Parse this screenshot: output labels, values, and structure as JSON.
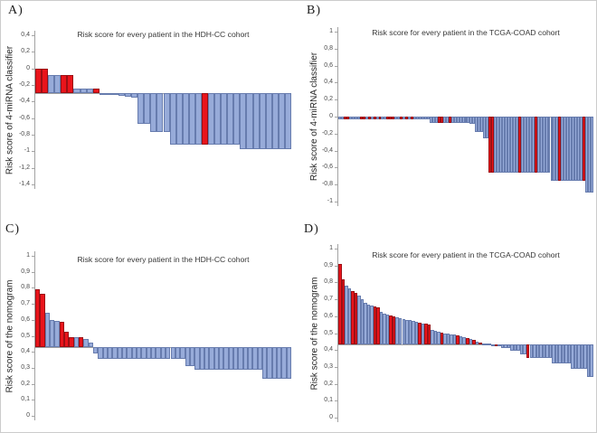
{
  "colors": {
    "background": "#ffffff",
    "bar_blue_fill": "#97abd9",
    "bar_blue_border": "#677cae",
    "bar_red_fill": "#e9141b",
    "bar_red_border": "#9b0f14",
    "axis_gray": "#a3a3a3",
    "title_text": "#373737",
    "tick_text": "#4a4a4a"
  },
  "chart_data": [
    {
      "type": "bar",
      "panel_label": "A)",
      "title": "Risk score for every patient in the HDH-CC cohort",
      "ylabel": "Risk score of 4-miRNA classifier",
      "ymax": 0.4,
      "ymin": -1.4,
      "baseline": -0.3,
      "grid": false,
      "legend": "none",
      "tick_labels": [
        "0,4",
        "0,2",
        "0",
        "-0,2",
        "-0,4",
        "-0,6",
        "-0,8",
        "-1",
        "-1,2",
        "-1,4"
      ],
      "tick_values": [
        0.4,
        0.2,
        0,
        -0.2,
        -0.4,
        -0.6,
        -0.8,
        -1,
        -1.2,
        -1.4
      ],
      "values": [
        -0.005,
        -0.005,
        -0.08,
        -0.08,
        -0.08,
        -0.08,
        -0.24,
        -0.24,
        -0.24,
        -0.24,
        -0.31,
        -0.315,
        -0.32,
        -0.33,
        -0.34,
        -0.35,
        -0.67,
        -0.67,
        -0.77,
        -0.77,
        -0.77,
        -0.92,
        -0.92,
        -0.92,
        -0.92,
        -0.92,
        -0.92,
        -0.92,
        -0.92,
        -0.92,
        -0.92,
        -0.92,
        -0.97,
        -0.97,
        -0.97,
        -0.97,
        -0.97,
        -0.97,
        -0.97,
        -0.97
      ],
      "red_indices": [
        0,
        1,
        4,
        5,
        9,
        26
      ]
    },
    {
      "type": "bar",
      "panel_label": "B)",
      "title": "Risk score for every patient in the TCGA-COAD cohort",
      "ylabel": "Risk score of 4-miRNA classifier",
      "ymax": 1,
      "ymin": -1,
      "baseline": 0,
      "grid": false,
      "legend": "none",
      "tick_labels": [
        "1",
        "0,8",
        "0,6",
        "0,4",
        "0,2",
        "0",
        "-0,2",
        "-0,4",
        "-0,6",
        "-0,8",
        "-1"
      ],
      "tick_values": [
        1,
        0.8,
        0.6,
        0.4,
        0.2,
        0,
        -0.2,
        -0.4,
        -0.6,
        -0.8,
        -1
      ],
      "values": [
        -0.035,
        -0.035,
        -0.035,
        -0.035,
        -0.035,
        -0.035,
        -0.035,
        -0.035,
        -0.035,
        -0.035,
        -0.035,
        -0.035,
        -0.035,
        -0.035,
        -0.035,
        -0.035,
        -0.035,
        -0.035,
        -0.035,
        -0.035,
        -0.035,
        -0.035,
        -0.035,
        -0.035,
        -0.035,
        -0.035,
        -0.035,
        -0.035,
        -0.035,
        -0.035,
        -0.035,
        -0.035,
        -0.035,
        -0.035,
        -0.07,
        -0.07,
        -0.07,
        -0.07,
        -0.07,
        -0.07,
        -0.07,
        -0.07,
        -0.07,
        -0.07,
        -0.07,
        -0.07,
        -0.07,
        -0.07,
        -0.07,
        -0.08,
        -0.08,
        -0.18,
        -0.18,
        -0.18,
        -0.26,
        -0.26,
        -0.66,
        -0.66,
        -0.66,
        -0.66,
        -0.66,
        -0.66,
        -0.66,
        -0.66,
        -0.66,
        -0.66,
        -0.66,
        -0.66,
        -0.66,
        -0.66,
        -0.66,
        -0.66,
        -0.66,
        -0.66,
        -0.66,
        -0.66,
        -0.66,
        -0.66,
        -0.66,
        -0.75,
        -0.75,
        -0.75,
        -0.75,
        -0.75,
        -0.75,
        -0.75,
        -0.75,
        -0.75,
        -0.75,
        -0.75,
        -0.75,
        -0.75,
        -0.89,
        -0.89,
        -0.89
      ],
      "red_indices": [
        2,
        3,
        8,
        9,
        11,
        13,
        15,
        18,
        19,
        20,
        23,
        25,
        27,
        37,
        38,
        41,
        56,
        57,
        67,
        73,
        82,
        91
      ]
    },
    {
      "type": "bar",
      "panel_label": "C)",
      "title": "Risk score for every patient in the HDH-CC cohort",
      "ylabel": "Risk score of the nomogram",
      "ymax": 1,
      "ymin": 0,
      "baseline": 0.43,
      "grid": false,
      "legend": "none",
      "tick_labels": [
        "1",
        "0,9",
        "0,8",
        "0,7",
        "0,6",
        "0,5",
        "0,4",
        "0,3",
        "0,2",
        "0,1",
        "0"
      ],
      "tick_values": [
        1,
        0.9,
        0.8,
        0.7,
        0.6,
        0.5,
        0.4,
        0.3,
        0.2,
        0.1,
        0
      ],
      "values": [
        0.79,
        0.76,
        0.645,
        0.6,
        0.595,
        0.585,
        0.525,
        0.49,
        0.49,
        0.49,
        0.48,
        0.455,
        0.39,
        0.355,
        0.355,
        0.355,
        0.355,
        0.355,
        0.355,
        0.355,
        0.355,
        0.355,
        0.355,
        0.355,
        0.355,
        0.355,
        0.355,
        0.355,
        0.355,
        0.355,
        0.355,
        0.31,
        0.31,
        0.29,
        0.29,
        0.29,
        0.29,
        0.29,
        0.29,
        0.29,
        0.29,
        0.29,
        0.29,
        0.29,
        0.29,
        0.29,
        0.29,
        0.23,
        0.23,
        0.23,
        0.23,
        0.23,
        0.23
      ],
      "red_indices": [
        0,
        1,
        5,
        6,
        7,
        9
      ]
    },
    {
      "type": "bar",
      "panel_label": "D)",
      "title": "Risk score for every patient in the TCGA-COAD cohort",
      "ylabel": "Risk score of the nomogram",
      "ymax": 1,
      "ymin": 0,
      "baseline": 0.435,
      "grid": false,
      "legend": "none",
      "tick_labels": [
        "1",
        "0,9",
        "0,8",
        "0,7",
        "0,6",
        "0,5",
        "0,4",
        "0,3",
        "0,2",
        "0,1",
        "0"
      ],
      "tick_values": [
        1,
        0.9,
        0.8,
        0.7,
        0.6,
        0.5,
        0.4,
        0.3,
        0.2,
        0.1,
        0
      ],
      "values": [
        0.91,
        0.82,
        0.78,
        0.765,
        0.75,
        0.74,
        0.72,
        0.7,
        0.68,
        0.67,
        0.665,
        0.66,
        0.655,
        0.625,
        0.615,
        0.61,
        0.605,
        0.6,
        0.595,
        0.59,
        0.585,
        0.58,
        0.575,
        0.57,
        0.565,
        0.56,
        0.555,
        0.555,
        0.55,
        0.52,
        0.515,
        0.51,
        0.505,
        0.5,
        0.495,
        0.49,
        0.49,
        0.485,
        0.48,
        0.475,
        0.47,
        0.465,
        0.46,
        0.45,
        0.445,
        0.44,
        0.438,
        0.436,
        0.435,
        0.43,
        0.428,
        0.41,
        0.41,
        0.41,
        0.395,
        0.395,
        0.395,
        0.375,
        0.375,
        0.355,
        0.355,
        0.355,
        0.355,
        0.355,
        0.355,
        0.355,
        0.355,
        0.32,
        0.32,
        0.32,
        0.32,
        0.32,
        0.32,
        0.29,
        0.29,
        0.29,
        0.29,
        0.29,
        0.24,
        0.24
      ],
      "red_indices": [
        0,
        1,
        4,
        5,
        11,
        12,
        16,
        17,
        25,
        27,
        28,
        32,
        37,
        40,
        42,
        44,
        49,
        59
      ]
    }
  ]
}
